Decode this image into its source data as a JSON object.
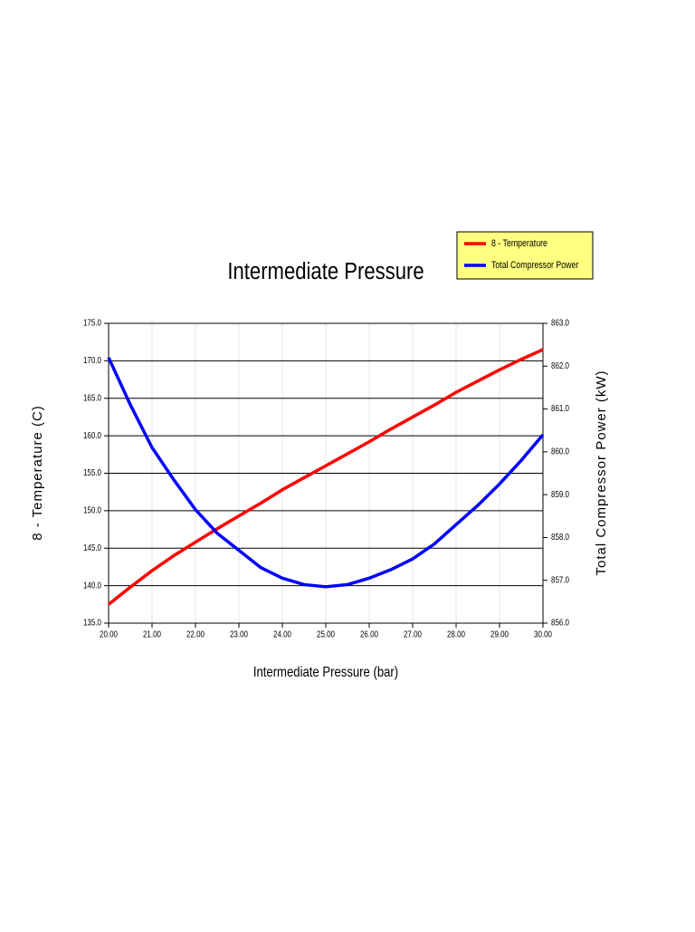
{
  "chart_data": {
    "type": "line",
    "title": "Intermediate Pressure",
    "x_label": "Intermediate Pressure (bar)",
    "y_label": "8 - Temperature (C)",
    "y2_label": "Total Compressor Power (kW)",
    "x": [
      20,
      20.5,
      21,
      21.5,
      22,
      22.5,
      23,
      23.5,
      24,
      24.5,
      25,
      25.5,
      26,
      26.5,
      27,
      27.5,
      28,
      28.5,
      29,
      29.5,
      30
    ],
    "series": [
      {
        "name": "8 - Temperature",
        "color": "#ff0000",
        "axis": "y",
        "values": [
          137.5,
          139.8,
          142,
          144,
          145.8,
          147.6,
          149.3,
          151,
          152.8,
          154.4,
          156,
          157.6,
          159.2,
          160.9,
          162.5,
          164.1,
          165.8,
          167.3,
          168.8,
          170.2,
          171.5
        ]
      },
      {
        "name": "Total Compressor Power",
        "color": "#0000ff",
        "axis": "y2",
        "values": [
          862.2,
          861.1,
          860.1,
          859.35,
          858.65,
          858.1,
          857.7,
          857.3,
          857.05,
          856.9,
          856.85,
          856.9,
          857.05,
          857.25,
          857.5,
          857.85,
          858.3,
          858.75,
          859.25,
          859.8,
          860.4
        ]
      }
    ],
    "xlim": [
      20,
      30
    ],
    "xticks": [
      {
        "value": 20,
        "label": "20.00"
      },
      {
        "value": 21,
        "label": "21.00"
      },
      {
        "value": 22,
        "label": "22.00"
      },
      {
        "value": 23,
        "label": "23.00"
      },
      {
        "value": 24,
        "label": "24.00"
      },
      {
        "value": 25,
        "label": "25.00"
      },
      {
        "value": 26,
        "label": "26.00"
      },
      {
        "value": 27,
        "label": "27.00"
      },
      {
        "value": 28,
        "label": "28.00"
      },
      {
        "value": 29,
        "label": "29.00"
      },
      {
        "value": 30,
        "label": "30.00"
      }
    ],
    "ylim": [
      135,
      175
    ],
    "yticks": [
      {
        "value": 135,
        "label": "135.0"
      },
      {
        "value": 140,
        "label": "140.0"
      },
      {
        "value": 145,
        "label": "145.0"
      },
      {
        "value": 150,
        "label": "150.0"
      },
      {
        "value": 155,
        "label": "155.0"
      },
      {
        "value": 160,
        "label": "160.0"
      },
      {
        "value": 165,
        "label": "165.0"
      },
      {
        "value": 170,
        "label": "170.0"
      },
      {
        "value": 175,
        "label": "175.0"
      }
    ],
    "y2lim": [
      856,
      863
    ],
    "y2ticks": [
      {
        "value": 856,
        "label": "856.0"
      },
      {
        "value": 857,
        "label": "857.0"
      },
      {
        "value": 858,
        "label": "858.0"
      },
      {
        "value": 859,
        "label": "859.0"
      },
      {
        "value": 860,
        "label": "860.0"
      },
      {
        "value": 861,
        "label": "861.0"
      },
      {
        "value": 862,
        "label": "862.0"
      },
      {
        "value": 863,
        "label": "863.0"
      }
    ],
    "grid": true,
    "legend_position": "top-right",
    "legend_color": "#ffff80"
  }
}
